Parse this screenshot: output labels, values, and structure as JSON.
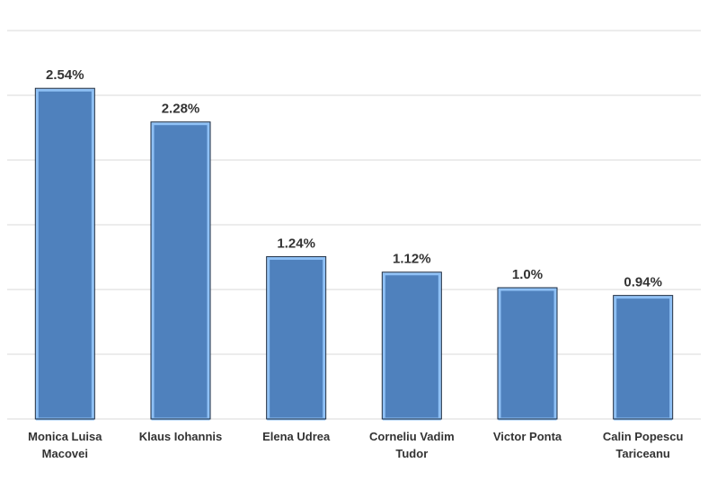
{
  "chart_data": {
    "type": "bar",
    "categories": [
      "Monica Luisa Macovei",
      "Klaus Iohannis",
      "Elena Udrea",
      "Corneliu Vadim Tudor",
      "Victor Ponta",
      "Calin Popescu Tariceanu"
    ],
    "values": [
      2.54,
      2.28,
      1.24,
      1.12,
      1.0,
      0.94
    ],
    "value_labels": [
      "2.54%",
      "2.28%",
      "1.24%",
      "1.12%",
      "1.0%",
      "0.94%"
    ],
    "color": "#4f81bd",
    "ylim": [
      0,
      3
    ],
    "yticks": [
      0,
      0.5,
      1,
      1.5,
      2,
      2.5,
      3
    ],
    "grid": true
  }
}
